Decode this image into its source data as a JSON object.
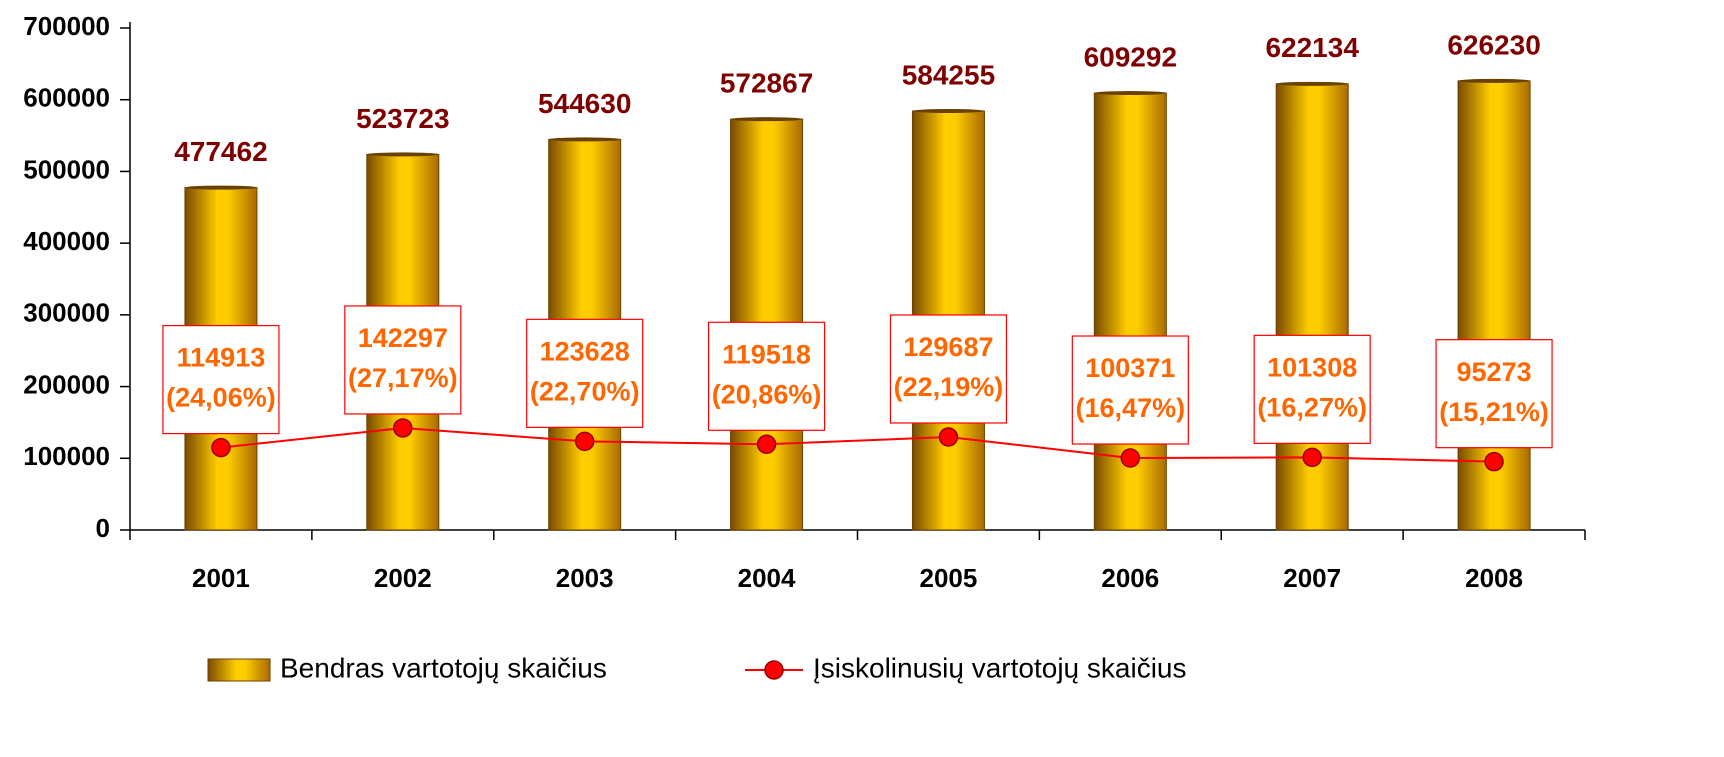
{
  "chart_data": {
    "type": "combo",
    "categories": [
      "2001",
      "2002",
      "2003",
      "2004",
      "2005",
      "2006",
      "2007",
      "2008"
    ],
    "series": [
      {
        "name": "Bendras vartotojų skaičius",
        "type": "bar",
        "color": "#ffcc00",
        "label_color": "#7f0000",
        "values": [
          477462,
          523723,
          544630,
          572867,
          584255,
          609292,
          622134,
          626230
        ]
      },
      {
        "name": "Įsiskolinusių vartotojų skaičius",
        "type": "line",
        "color": "#ff0000",
        "label_color": "#ff6600",
        "values": [
          114913,
          142297,
          123628,
          119518,
          129687,
          100371,
          101308,
          95273
        ],
        "share_labels": [
          "(24,06%)",
          "(27,17%)",
          "(22,70%)",
          "(20,86%)",
          "(22,19%)",
          "(16,47%)",
          "(16,27%)",
          "(15,21%)"
        ]
      }
    ],
    "ylim": [
      0,
      700000
    ],
    "yticks": [
      0,
      100000,
      200000,
      300000,
      400000,
      500000,
      600000,
      700000
    ],
    "grid": false,
    "legend": "bottom"
  }
}
